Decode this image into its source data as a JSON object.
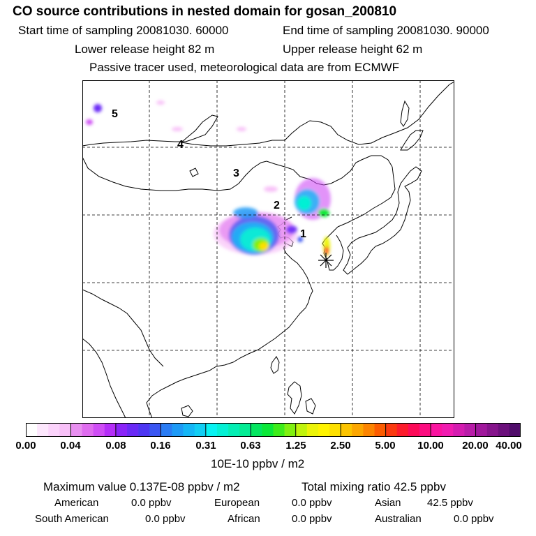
{
  "header": {
    "title": "CO  source contributions in nested domain for gosan_200810",
    "start_label": "Start time of sampling 20081030. 60000",
    "end_label": "End time of sampling 20081030. 90000",
    "lower_height": "Lower release height   82 m",
    "upper_height": "Upper release height   62 m",
    "tracer_note": "Passive tracer used, meteorological data are from ECMWF"
  },
  "map": {
    "labels": [
      "5",
      "4",
      "3",
      "2",
      "1"
    ],
    "receptor": "gosan"
  },
  "colorbar": {
    "ticks": [
      "0.00",
      "0.04",
      "0.08",
      "0.16",
      "0.31",
      "0.63",
      "1.25",
      "2.50",
      "5.00",
      "10.00",
      "20.00",
      "40.00"
    ],
    "units": "10E-10 ppbv / m2",
    "colors": [
      [
        "#ffffff",
        "#fde7fd",
        "#fbd3fb",
        "#f8c0f8"
      ],
      [
        "#e88ff0",
        "#df6cef",
        "#cf4df5",
        "#b52ef8"
      ],
      [
        "#8a24f8",
        "#6a2af6",
        "#4d36f2",
        "#3a56f2"
      ],
      [
        "#2a7cf4",
        "#1d9af6",
        "#14b6f6",
        "#11cef4"
      ],
      [
        "#08f2f2",
        "#05f0d4",
        "#04eeb4",
        "#03ec94"
      ],
      [
        "#04e660",
        "#0be838",
        "#3eec1a",
        "#80f010"
      ],
      [
        "#c0f40c",
        "#ecf408",
        "#fff400",
        "#fde000"
      ],
      [
        "#fcc400",
        "#fca600",
        "#fc8400",
        "#fc5c00"
      ],
      [
        "#fb3a10",
        "#fc1c2c",
        "#fc0a58",
        "#fc0c80"
      ],
      [
        "#fa14a0",
        "#f01cb0",
        "#d41cb0",
        "#b81ca8"
      ],
      [
        "#a0189c",
        "#86148c",
        "#6c107c",
        "#500c6a"
      ]
    ]
  },
  "stats": {
    "max_value": "Maximum value  0.137E-08 ppbv / m2",
    "total_mixing": "Total mixing ratio       42.5 ppbv"
  },
  "regions": [
    {
      "name": "American",
      "value": "0.0 ppbv"
    },
    {
      "name": "European",
      "value": "0.0 ppbv"
    },
    {
      "name": "Asian",
      "value": "42.5 ppbv"
    },
    {
      "name": "South American",
      "value": "0.0 ppbv"
    },
    {
      "name": "African",
      "value": "0.0 ppbv"
    },
    {
      "name": "Australian",
      "value": "0.0 ppbv"
    }
  ]
}
